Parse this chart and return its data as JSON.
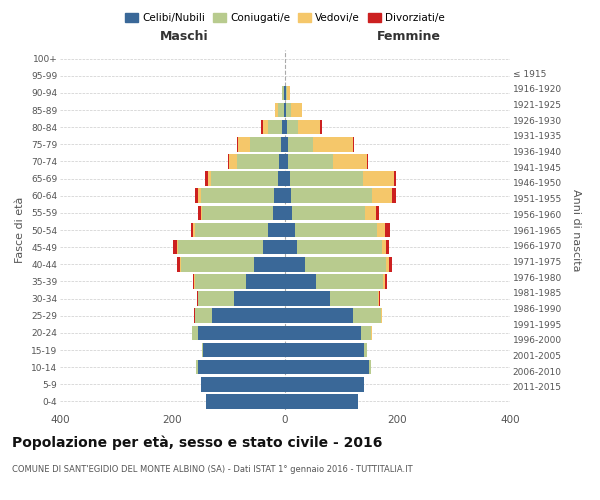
{
  "age_groups": [
    "0-4",
    "5-9",
    "10-14",
    "15-19",
    "20-24",
    "25-29",
    "30-34",
    "35-39",
    "40-44",
    "45-49",
    "50-54",
    "55-59",
    "60-64",
    "65-69",
    "70-74",
    "75-79",
    "80-84",
    "85-89",
    "90-94",
    "95-99",
    "100+"
  ],
  "birth_years": [
    "2011-2015",
    "2006-2010",
    "2001-2005",
    "1996-2000",
    "1991-1995",
    "1986-1990",
    "1981-1985",
    "1976-1980",
    "1971-1975",
    "1966-1970",
    "1961-1965",
    "1956-1960",
    "1951-1955",
    "1946-1950",
    "1941-1945",
    "1936-1940",
    "1931-1935",
    "1926-1930",
    "1921-1925",
    "1916-1920",
    "≤ 1915"
  ],
  "maschi": {
    "celibi": [
      140,
      150,
      155,
      145,
      155,
      130,
      90,
      70,
      55,
      40,
      30,
      22,
      20,
      12,
      10,
      8,
      5,
      2,
      2,
      0,
      0
    ],
    "coniugati": [
      0,
      0,
      3,
      3,
      10,
      30,
      65,
      90,
      130,
      150,
      130,
      125,
      130,
      120,
      75,
      55,
      25,
      10,
      3,
      0,
      0
    ],
    "vedovi": [
      0,
      0,
      0,
      0,
      1,
      0,
      0,
      1,
      2,
      2,
      3,
      3,
      5,
      5,
      15,
      20,
      10,
      5,
      1,
      0,
      0
    ],
    "divorziati": [
      0,
      0,
      0,
      0,
      0,
      1,
      2,
      3,
      5,
      8,
      5,
      5,
      5,
      5,
      2,
      2,
      2,
      0,
      0,
      0,
      0
    ]
  },
  "femmine": {
    "nubili": [
      130,
      140,
      150,
      140,
      135,
      120,
      80,
      55,
      35,
      22,
      18,
      12,
      10,
      8,
      5,
      5,
      3,
      2,
      2,
      0,
      0
    ],
    "coniugate": [
      0,
      1,
      3,
      5,
      18,
      50,
      85,
      120,
      145,
      150,
      145,
      130,
      145,
      130,
      80,
      45,
      20,
      8,
      2,
      0,
      0
    ],
    "vedove": [
      0,
      0,
      0,
      0,
      1,
      2,
      2,
      3,
      5,
      8,
      15,
      20,
      35,
      55,
      60,
      70,
      40,
      20,
      5,
      0,
      0
    ],
    "divorziate": [
      0,
      0,
      0,
      0,
      0,
      1,
      2,
      3,
      5,
      5,
      8,
      5,
      8,
      5,
      2,
      2,
      2,
      0,
      0,
      0,
      0
    ]
  },
  "colors": {
    "celibi": "#3a6898",
    "coniugati": "#b8cb8e",
    "vedovi": "#f5c76a",
    "divorziati": "#cc2020"
  },
  "xlim": 400,
  "title": "Popolazione per età, sesso e stato civile - 2016",
  "subtitle": "COMUNE DI SANT'EGIDIO DEL MONTE ALBINO (SA) - Dati ISTAT 1° gennaio 2016 - TUTTITALIA.IT",
  "ylabel_left": "Fasce di età",
  "ylabel_right": "Anni di nascita",
  "xlabel_left": "Maschi",
  "xlabel_right": "Femmine"
}
